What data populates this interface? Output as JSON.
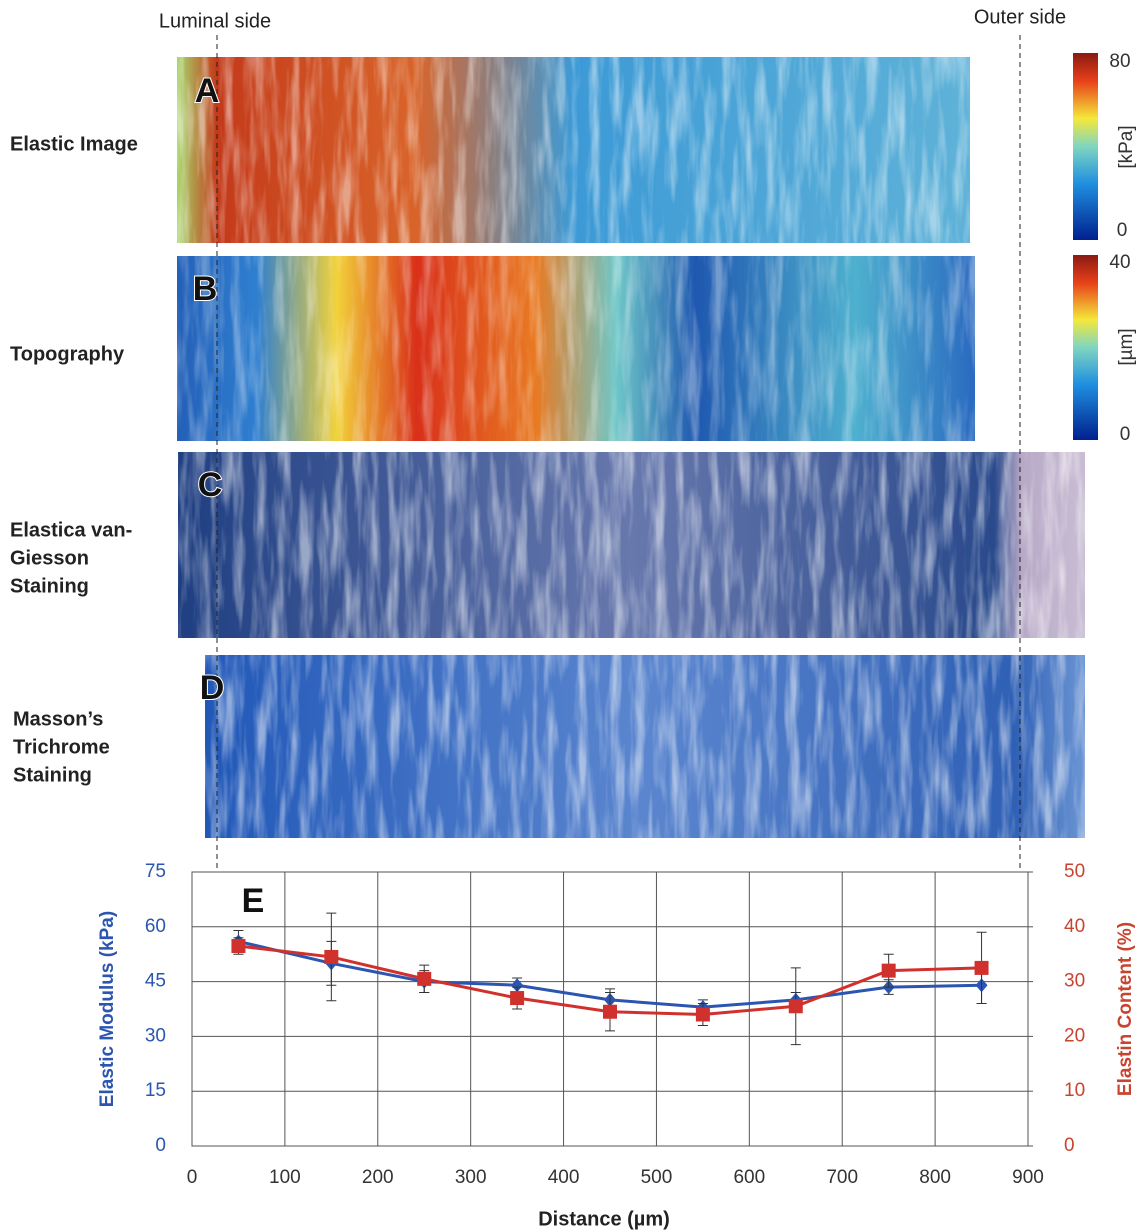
{
  "figure": {
    "luminal_side": "Luminal side",
    "outer_side": "Outer side",
    "panels": [
      {
        "letter": "A",
        "label": [
          "Elastic Image"
        ]
      },
      {
        "letter": "B",
        "label": [
          "Topography"
        ]
      },
      {
        "letter": "C",
        "label": [
          "Elastica van-",
          "Giesson",
          "Staining"
        ]
      },
      {
        "letter": "D",
        "label": [
          "Masson’s",
          "Trichrome",
          "Staining"
        ]
      }
    ],
    "colorbars": [
      {
        "unit": "[kPa]",
        "max": 80,
        "min": 0
      },
      {
        "unit": "[µm]",
        "max": 40,
        "min": 0
      }
    ]
  },
  "chart_data": {
    "type": "line",
    "panel_label": "E",
    "xlabel": "Distance (µm)",
    "ylabel": "Elastic Modulus (kPa)",
    "y2label": "Elastin Content (%)",
    "x": [
      50,
      150,
      250,
      350,
      450,
      550,
      650,
      750,
      850
    ],
    "xlim": [
      0,
      900
    ],
    "xticks": [
      0,
      100,
      200,
      300,
      400,
      500,
      600,
      700,
      800,
      900
    ],
    "ylim": [
      0,
      75
    ],
    "yticks": [
      0,
      15,
      30,
      45,
      60,
      75
    ],
    "y2lim": [
      0,
      50
    ],
    "y2ticks": [
      0,
      10,
      20,
      30,
      40,
      50
    ],
    "grid": true,
    "series": [
      {
        "color": "#2b55b0",
        "axis": "y",
        "marker": "diamond",
        "values": [
          56,
          50,
          45,
          44,
          40,
          38,
          40,
          43.5,
          44
        ],
        "errors": [
          3,
          6,
          3,
          2,
          3,
          2,
          2,
          2,
          5
        ]
      },
      {
        "color": "#d0312d",
        "axis": "y2",
        "marker": "square",
        "values": [
          36.5,
          34.5,
          30.5,
          27,
          24.5,
          24,
          25.5,
          32,
          32.5
        ],
        "errors": [
          1.5,
          8,
          2.5,
          2,
          3.5,
          2,
          7,
          3,
          6.5
        ]
      }
    ]
  }
}
